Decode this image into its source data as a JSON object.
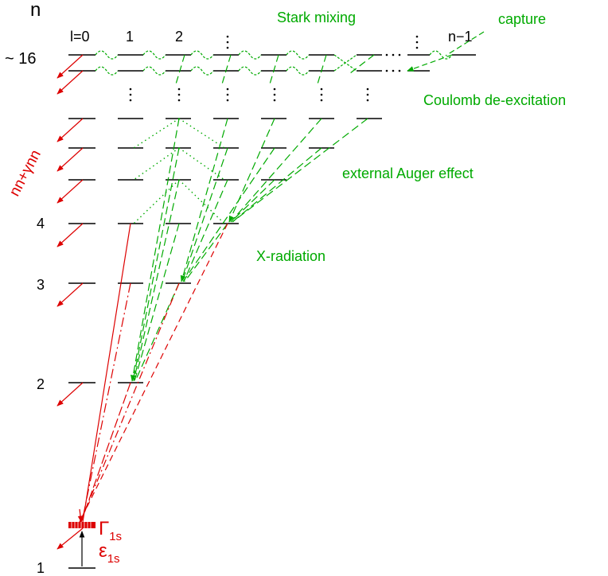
{
  "axis": {
    "n_label": "n",
    "n_top": "~ 16"
  },
  "l_labels": [
    "l=0",
    "1",
    "2",
    "n−1"
  ],
  "n_labels": [
    "4",
    "3",
    "2",
    "1"
  ],
  "processes": {
    "stark": "Stark mixing",
    "capture": "capture",
    "coulomb": "Coulomb de-excitation",
    "auger": "external Auger effect",
    "xray": "X-radiation"
  },
  "nn_label": "nn+γnn",
  "gamma_main": "Γ",
  "gamma_sub": "1s",
  "eps_main": "ε",
  "eps_sub": "1s",
  "colors": {
    "black": "#000000",
    "green": "#00aa00",
    "red": "#dd0000"
  }
}
